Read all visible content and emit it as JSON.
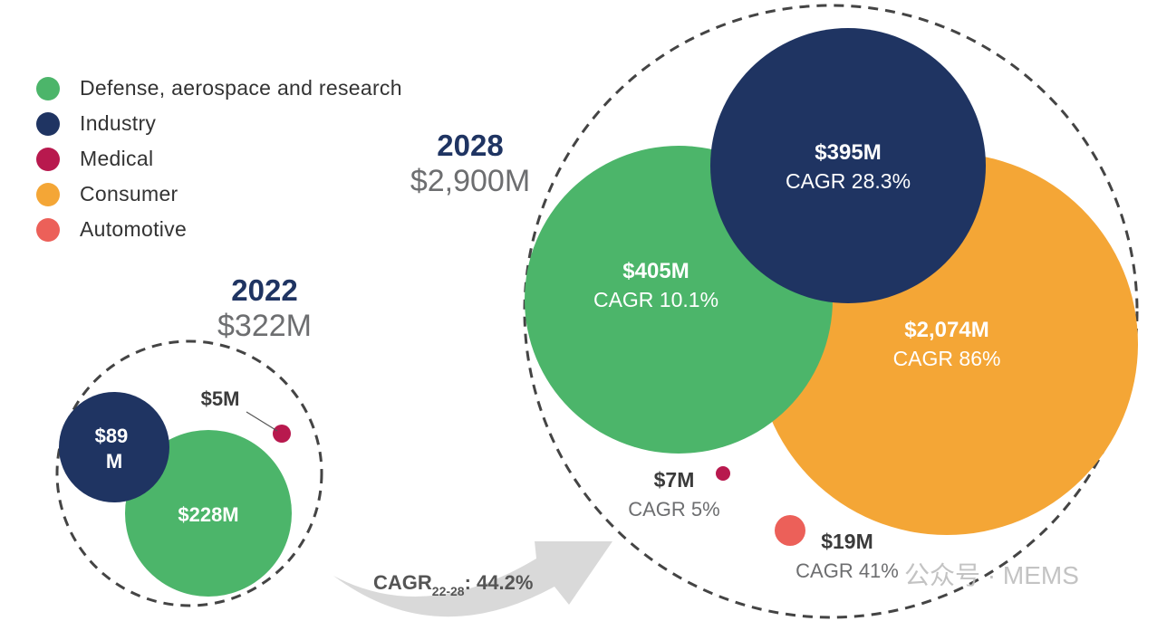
{
  "colors": {
    "defense": "#4cb56a",
    "industry": "#1f3462",
    "medical": "#b8194e",
    "consumer": "#f4a636",
    "automotive": "#ec6059",
    "year_label": "#1f3462",
    "total_label": "#6d6e70",
    "value_dark": "#3b3b3b",
    "cagr_gray": "#6d6e70"
  },
  "legend": [
    {
      "label": "Defense, aerospace and research",
      "color": "#4cb56a"
    },
    {
      "label": "Industry",
      "color": "#1f3462"
    },
    {
      "label": "Medical",
      "color": "#b8194e"
    },
    {
      "label": "Consumer",
      "color": "#f4a636"
    },
    {
      "label": "Automotive",
      "color": "#ec6059"
    }
  ],
  "chart_data": [
    {
      "type": "bubble",
      "year": "2022",
      "total": "$322M",
      "total_value": 322,
      "segments": [
        {
          "name": "Industry",
          "value": 89,
          "label": "$89 M"
        },
        {
          "name": "Defense, aerospace and research",
          "value": 228,
          "label": "$228M"
        },
        {
          "name": "Medical",
          "value": 5,
          "label": "$5M"
        }
      ]
    },
    {
      "type": "bubble",
      "year": "2028",
      "total": "$2,900M",
      "total_value": 2900,
      "segments": [
        {
          "name": "Defense, aerospace and research",
          "value": 405,
          "label": "$405M",
          "cagr": "CAGR 10.1%"
        },
        {
          "name": "Industry",
          "value": 395,
          "label": "$395M",
          "cagr": "CAGR 28.3%"
        },
        {
          "name": "Consumer",
          "value": 2074,
          "label": "$2,074M",
          "cagr": "CAGR 86%"
        },
        {
          "name": "Medical",
          "value": 7,
          "label": "$7M",
          "cagr": "CAGR 5%"
        },
        {
          "name": "Automotive",
          "value": 19,
          "label": "$19M",
          "cagr": "CAGR 41%"
        }
      ]
    }
  ],
  "overall_cagr": {
    "prefix": "CAGR",
    "subscript": "22-28",
    "value": ": 44.2%"
  },
  "watermark": "公众号 · MEMS"
}
